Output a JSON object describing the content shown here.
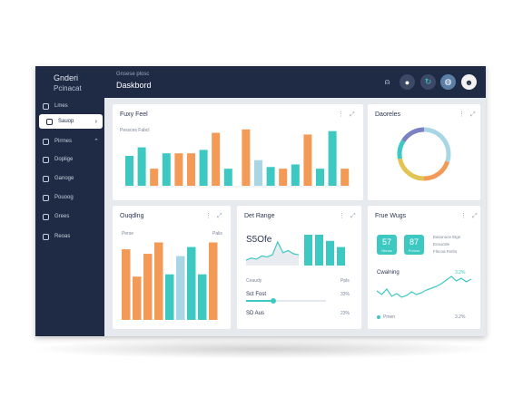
{
  "brand": {
    "line1": "Gnderi",
    "line2": "Pcinacat"
  },
  "header": {
    "subtitle": "Gnsese plosc",
    "title": "Daskbord"
  },
  "header_icons": [
    "bell-icon",
    "user-badge-icon",
    "refresh-icon",
    "globe-icon",
    "avatar"
  ],
  "sidebar": {
    "items": [
      {
        "label": "Lmes",
        "icon": "home-icon"
      },
      {
        "label": "Sauop",
        "icon": "box-icon",
        "active": true
      },
      {
        "label": "Pirrnes",
        "icon": "calendar-icon"
      },
      {
        "label": "Doplige",
        "icon": "chart-icon"
      },
      {
        "label": "Ganoge",
        "icon": "settings-icon"
      },
      {
        "label": "Pouoog",
        "icon": "cloud-icon"
      },
      {
        "label": "Grees",
        "icon": "folder-icon"
      },
      {
        "label": "Reoas",
        "icon": "gear-icon"
      }
    ]
  },
  "cards": {
    "tiny_reel": {
      "title": "Fuxy Feel",
      "legend": "Pessces Fabcl"
    },
    "donut": {
      "title": "Daoreles"
    },
    "outgoing": {
      "title": "Ouqdlng",
      "left_tag": "Perse",
      "right_tag": "Palis"
    },
    "det_range": {
      "title": "Det Range",
      "value": "S5Ofe",
      "rows": [
        {
          "label": "Ceaudy",
          "value": "Ppls"
        },
        {
          "label": "Sct Fost",
          "value": "33%"
        },
        {
          "label": "SD Aus",
          "value": "23%"
        }
      ]
    },
    "frue_wugs": {
      "title": "Frue Wugs",
      "stats": [
        {
          "value": "57",
          "label": "Nhnas"
        },
        {
          "value": "87",
          "label": "Pomos"
        }
      ],
      "note1": "Easonoce Elgs",
      "note2": "Ecsucsle",
      "note3": "Flncoa Ferlrs",
      "row_label": "Cwalning",
      "row_value": "3.2%",
      "dot_label": "Pmen",
      "dot_value": "3.2%"
    }
  },
  "colors": {
    "navy": "#1f2a44",
    "teal": "#3ec8c2",
    "orange": "#f39a57",
    "lightblue": "#a9d6e5",
    "purple": "#7b7fc4",
    "yellow": "#e3c452"
  },
  "chart_data": [
    {
      "type": "bar",
      "title": "Fuxy Feel",
      "series": [
        {
          "values": [
            35,
            45,
            20,
            38,
            38,
            38,
            42,
            62,
            20,
            66,
            30,
            22,
            20,
            25,
            60,
            20,
            64,
            20
          ]
        }
      ],
      "colors": [
        "teal",
        "teal",
        "orange",
        "teal",
        "orange",
        "orange",
        "teal",
        "orange",
        "teal",
        "orange",
        "lightblue",
        "teal",
        "orange",
        "teal",
        "orange",
        "teal",
        "teal",
        "orange"
      ]
    },
    {
      "type": "pie",
      "title": "Daoreles",
      "values": [
        30,
        20,
        22,
        12,
        16
      ],
      "colors": [
        "lightblue",
        "orange",
        "yellow",
        "teal",
        "purple"
      ]
    },
    {
      "type": "bar",
      "title": "Ouqdlng",
      "series": [
        {
          "values": [
            62,
            38,
            58,
            68,
            40,
            56,
            64,
            40,
            68
          ]
        }
      ],
      "colors": [
        "orange",
        "orange",
        "orange",
        "orange",
        "teal",
        "lightblue",
        "teal",
        "teal",
        "orange"
      ]
    },
    {
      "type": "area",
      "title": "Det Range",
      "series": [
        {
          "values": [
            5,
            7,
            6,
            9,
            8,
            10,
            22,
            12,
            14,
            11,
            10
          ]
        }
      ]
    },
    {
      "type": "bar",
      "title": "Det Range bars",
      "series": [
        {
          "values": [
            40,
            40,
            32,
            24
          ]
        }
      ]
    },
    {
      "type": "line",
      "title": "Frue Wugs",
      "series": [
        {
          "values": [
            14,
            10,
            16,
            8,
            11,
            7,
            9,
            13,
            10,
            12,
            15,
            17,
            19,
            22,
            26,
            30,
            25,
            28,
            24,
            27
          ]
        }
      ]
    }
  ]
}
